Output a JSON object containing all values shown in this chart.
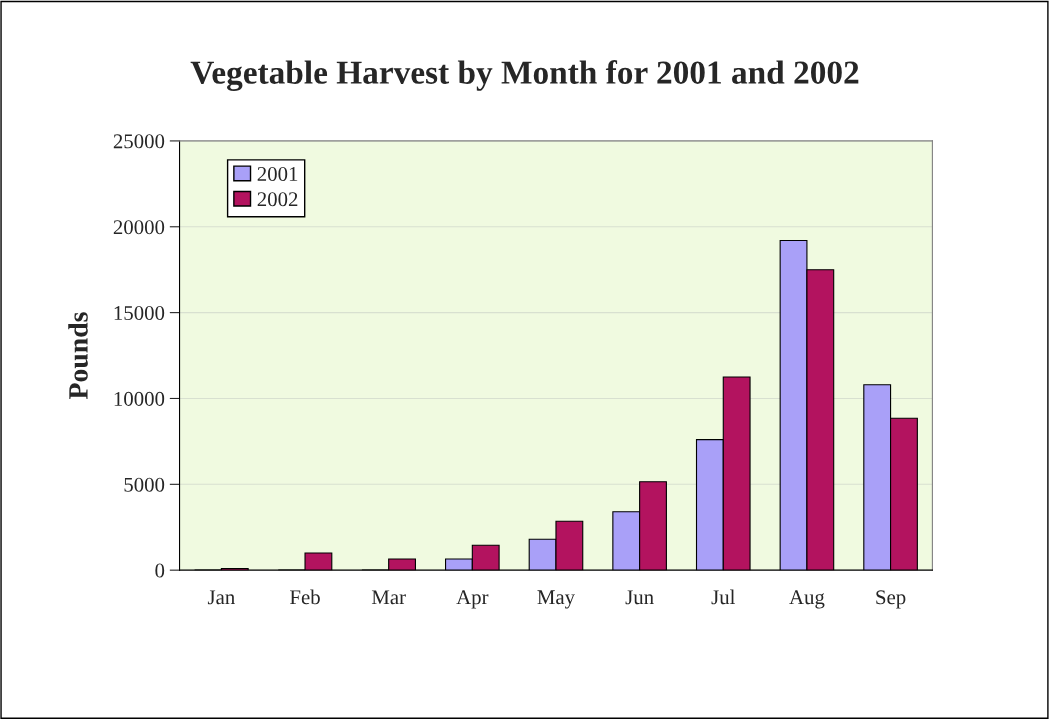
{
  "chart_data": {
    "type": "bar",
    "title": "Vegetable Harvest by Month for 2001 and 2002",
    "ylabel": "Pounds",
    "categories": [
      "Jan",
      "Feb",
      "Mar",
      "Apr",
      "May",
      "Jun",
      "Jul",
      "Aug",
      "Sep"
    ],
    "series": [
      {
        "name": "2001",
        "color": "#a9a0f8",
        "values": [
          0,
          0,
          0,
          650,
          1800,
          3400,
          7600,
          19200,
          10800
        ]
      },
      {
        "name": "2002",
        "color": "#b3135f",
        "values": [
          100,
          1000,
          650,
          1450,
          2850,
          5150,
          11250,
          17500,
          8850
        ]
      }
    ],
    "ylim": [
      0,
      25000
    ],
    "yticks": [
      0,
      5000,
      10000,
      15000,
      20000,
      25000
    ],
    "grid": "y",
    "legend": "top left"
  }
}
